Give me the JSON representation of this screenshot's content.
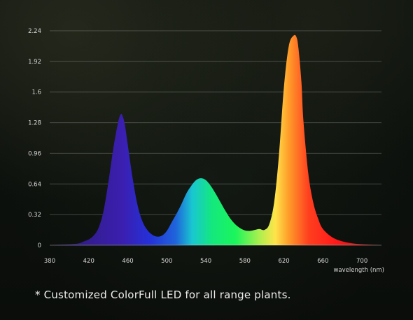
{
  "caption": "* Customized ColorFull LED for all range plants.",
  "chart_data": {
    "type": "area",
    "title": "",
    "xlabel": "wavelength (nm)",
    "ylabel": "",
    "xlim": [
      380,
      720
    ],
    "ylim": [
      0,
      2.24
    ],
    "x_ticks": [
      380,
      420,
      460,
      500,
      540,
      580,
      620,
      660,
      700
    ],
    "y_ticks": [
      0,
      0.32,
      0.64,
      0.96,
      1.28,
      1.6,
      1.92,
      2.24
    ],
    "x_tick_labels": [
      "380",
      "420",
      "460",
      "500",
      "540",
      "580",
      "620",
      "660",
      "700"
    ],
    "y_tick_labels": [
      "0",
      "0.32",
      "0.64",
      "0.96",
      "1.28",
      "1.6",
      "1.92",
      "2.24"
    ],
    "grid": true,
    "series": [
      {
        "x": [
          380,
          400,
          410,
          415,
          420,
          425,
          430,
          435,
          440,
          445,
          450,
          453,
          455,
          457,
          460,
          465,
          470,
          475,
          480,
          485,
          490,
          495,
          500,
          505,
          510,
          515,
          520,
          525,
          530,
          535,
          540,
          545,
          550,
          555,
          560,
          565,
          570,
          575,
          580,
          585,
          590,
          595,
          600,
          605,
          610,
          615,
          620,
          625,
          630,
          633,
          635,
          638,
          640,
          645,
          650,
          655,
          660,
          670,
          680,
          690,
          700,
          710,
          720
        ],
        "y": [
          0.0,
          0.01,
          0.02,
          0.04,
          0.06,
          0.1,
          0.18,
          0.35,
          0.65,
          1.0,
          1.28,
          1.37,
          1.34,
          1.26,
          1.05,
          0.7,
          0.42,
          0.25,
          0.16,
          0.11,
          0.09,
          0.1,
          0.15,
          0.24,
          0.33,
          0.43,
          0.54,
          0.62,
          0.68,
          0.7,
          0.68,
          0.62,
          0.54,
          0.45,
          0.36,
          0.28,
          0.22,
          0.18,
          0.155,
          0.15,
          0.16,
          0.17,
          0.16,
          0.22,
          0.45,
          0.95,
          1.65,
          2.08,
          2.19,
          2.17,
          2.05,
          1.7,
          1.3,
          0.75,
          0.45,
          0.28,
          0.17,
          0.08,
          0.04,
          0.02,
          0.01,
          0.005,
          0.0
        ]
      }
    ]
  }
}
